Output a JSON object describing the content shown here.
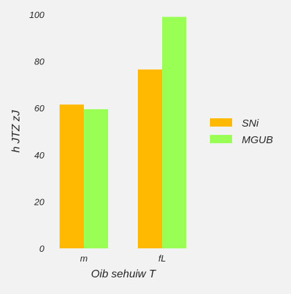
{
  "chart_data": {
    "type": "bar",
    "categories": [
      "m",
      "fL"
    ],
    "series": [
      {
        "name": "SNi",
        "values": [
          61.5,
          76.5
        ],
        "color": "#ffb900"
      },
      {
        "name": "MGUB",
        "values": [
          59.5,
          99
        ],
        "color": "#99ff55"
      }
    ],
    "xlabel": "Oib  sehuiw T",
    "ylabel": "h JTZ zJ",
    "ylim": [
      0,
      100
    ],
    "yticks": [
      0,
      20,
      40,
      60,
      80,
      100
    ],
    "grid": false,
    "legend": "right"
  }
}
